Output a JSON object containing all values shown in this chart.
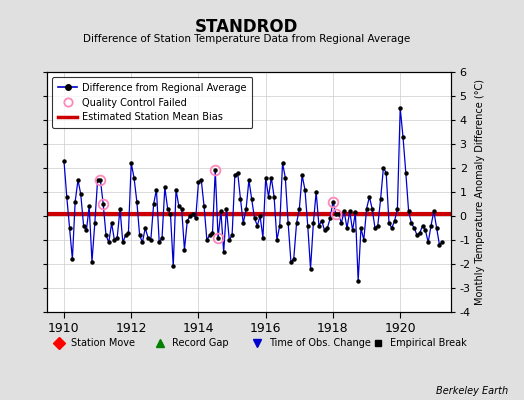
{
  "title": "STANDROD",
  "subtitle": "Difference of Station Temperature Data from Regional Average",
  "ylabel_right": "Monthly Temperature Anomaly Difference (°C)",
  "bias_value": 0.1,
  "ylim": [
    -4,
    6
  ],
  "xlim": [
    1909.5,
    1921.5
  ],
  "background_color": "#e0e0e0",
  "plot_bg_color": "#ffffff",
  "line_color": "#0000cc",
  "bias_color": "#cc0000",
  "qc_color": "#ff88bb",
  "watermark": "Berkeley Earth",
  "x_ticks": [
    1910,
    1912,
    1914,
    1916,
    1918,
    1920
  ],
  "y_ticks_right": [
    -4,
    -3,
    -2,
    -1,
    0,
    1,
    2,
    3,
    4,
    5,
    6
  ],
  "data_t": [
    1910.0,
    1910.083,
    1910.167,
    1910.25,
    1910.333,
    1910.417,
    1910.5,
    1910.583,
    1910.667,
    1910.75,
    1910.833,
    1910.917,
    1911.0,
    1911.083,
    1911.167,
    1911.25,
    1911.333,
    1911.417,
    1911.5,
    1911.583,
    1911.667,
    1911.75,
    1911.833,
    1911.917,
    1912.0,
    1912.083,
    1912.167,
    1912.25,
    1912.333,
    1912.417,
    1912.5,
    1912.583,
    1912.667,
    1912.75,
    1912.833,
    1912.917,
    1913.0,
    1913.083,
    1913.167,
    1913.25,
    1913.333,
    1913.417,
    1913.5,
    1913.583,
    1913.667,
    1913.75,
    1913.833,
    1913.917,
    1914.0,
    1914.083,
    1914.167,
    1914.25,
    1914.333,
    1914.417,
    1914.5,
    1914.583,
    1914.667,
    1914.75,
    1914.833,
    1914.917,
    1915.0,
    1915.083,
    1915.167,
    1915.25,
    1915.333,
    1915.417,
    1915.5,
    1915.583,
    1915.667,
    1915.75,
    1915.833,
    1915.917,
    1916.0,
    1916.083,
    1916.167,
    1916.25,
    1916.333,
    1916.417,
    1916.5,
    1916.583,
    1916.667,
    1916.75,
    1916.833,
    1916.917,
    1917.0,
    1917.083,
    1917.167,
    1917.25,
    1917.333,
    1917.417,
    1917.5,
    1917.583,
    1917.667,
    1917.75,
    1917.833,
    1917.917,
    1918.0,
    1918.083,
    1918.167,
    1918.25,
    1918.333,
    1918.417,
    1918.5,
    1918.583,
    1918.667,
    1918.75,
    1918.833,
    1918.917,
    1919.0,
    1919.083,
    1919.167,
    1919.25,
    1919.333,
    1919.417,
    1919.5,
    1919.583,
    1919.667,
    1919.75,
    1919.833,
    1919.917,
    1920.0,
    1920.083,
    1920.167,
    1920.25,
    1920.333,
    1920.417,
    1920.5,
    1920.583,
    1920.667,
    1920.75,
    1920.833,
    1920.917,
    1921.0,
    1921.083,
    1921.167,
    1921.25
  ],
  "data_v": [
    2.3,
    0.8,
    -0.5,
    -1.8,
    0.6,
    1.5,
    0.9,
    -0.4,
    -0.6,
    0.4,
    -1.9,
    -0.3,
    1.5,
    1.5,
    0.5,
    -0.8,
    -1.1,
    -0.3,
    -1.0,
    -0.9,
    0.3,
    -1.1,
    -0.8,
    -0.7,
    2.2,
    1.6,
    0.6,
    -0.8,
    -1.1,
    -0.5,
    -0.9,
    -1.0,
    0.5,
    1.1,
    -1.1,
    -0.9,
    1.2,
    0.3,
    0.1,
    -2.1,
    1.1,
    0.4,
    0.3,
    -1.4,
    -0.2,
    0.0,
    0.1,
    -0.1,
    1.4,
    1.5,
    0.4,
    -1.0,
    -0.8,
    -0.7,
    1.9,
    -0.9,
    0.2,
    -1.5,
    0.3,
    -1.0,
    -0.8,
    1.7,
    1.8,
    0.7,
    -0.3,
    0.3,
    1.5,
    0.7,
    -0.1,
    -0.4,
    0.0,
    -0.9,
    1.6,
    0.8,
    1.6,
    0.8,
    -1.0,
    -0.4,
    2.2,
    1.6,
    -0.3,
    -1.9,
    -1.8,
    -0.3,
    0.3,
    1.7,
    1.1,
    -0.4,
    -2.2,
    -0.3,
    1.0,
    -0.4,
    -0.2,
    -0.6,
    -0.5,
    -0.1,
    0.6,
    0.1,
    0.1,
    -0.3,
    0.2,
    -0.5,
    0.2,
    -0.6,
    0.15,
    -2.7,
    -0.5,
    -1.0,
    0.3,
    0.8,
    0.3,
    -0.5,
    -0.4,
    0.7,
    2.0,
    1.8,
    -0.3,
    -0.5,
    -0.2,
    0.3,
    4.5,
    3.3,
    1.8,
    0.2,
    -0.3,
    -0.5,
    -0.8,
    -0.7,
    -0.4,
    -0.6,
    -1.1,
    -0.4,
    0.2,
    -0.5,
    -1.2,
    -1.1
  ],
  "qc_failed_times": [
    1911.083,
    1911.167,
    1914.5,
    1914.583,
    1918.0,
    1918.083
  ],
  "qc_failed_values": [
    1.5,
    0.5,
    1.9,
    -0.9,
    0.6,
    0.1
  ]
}
